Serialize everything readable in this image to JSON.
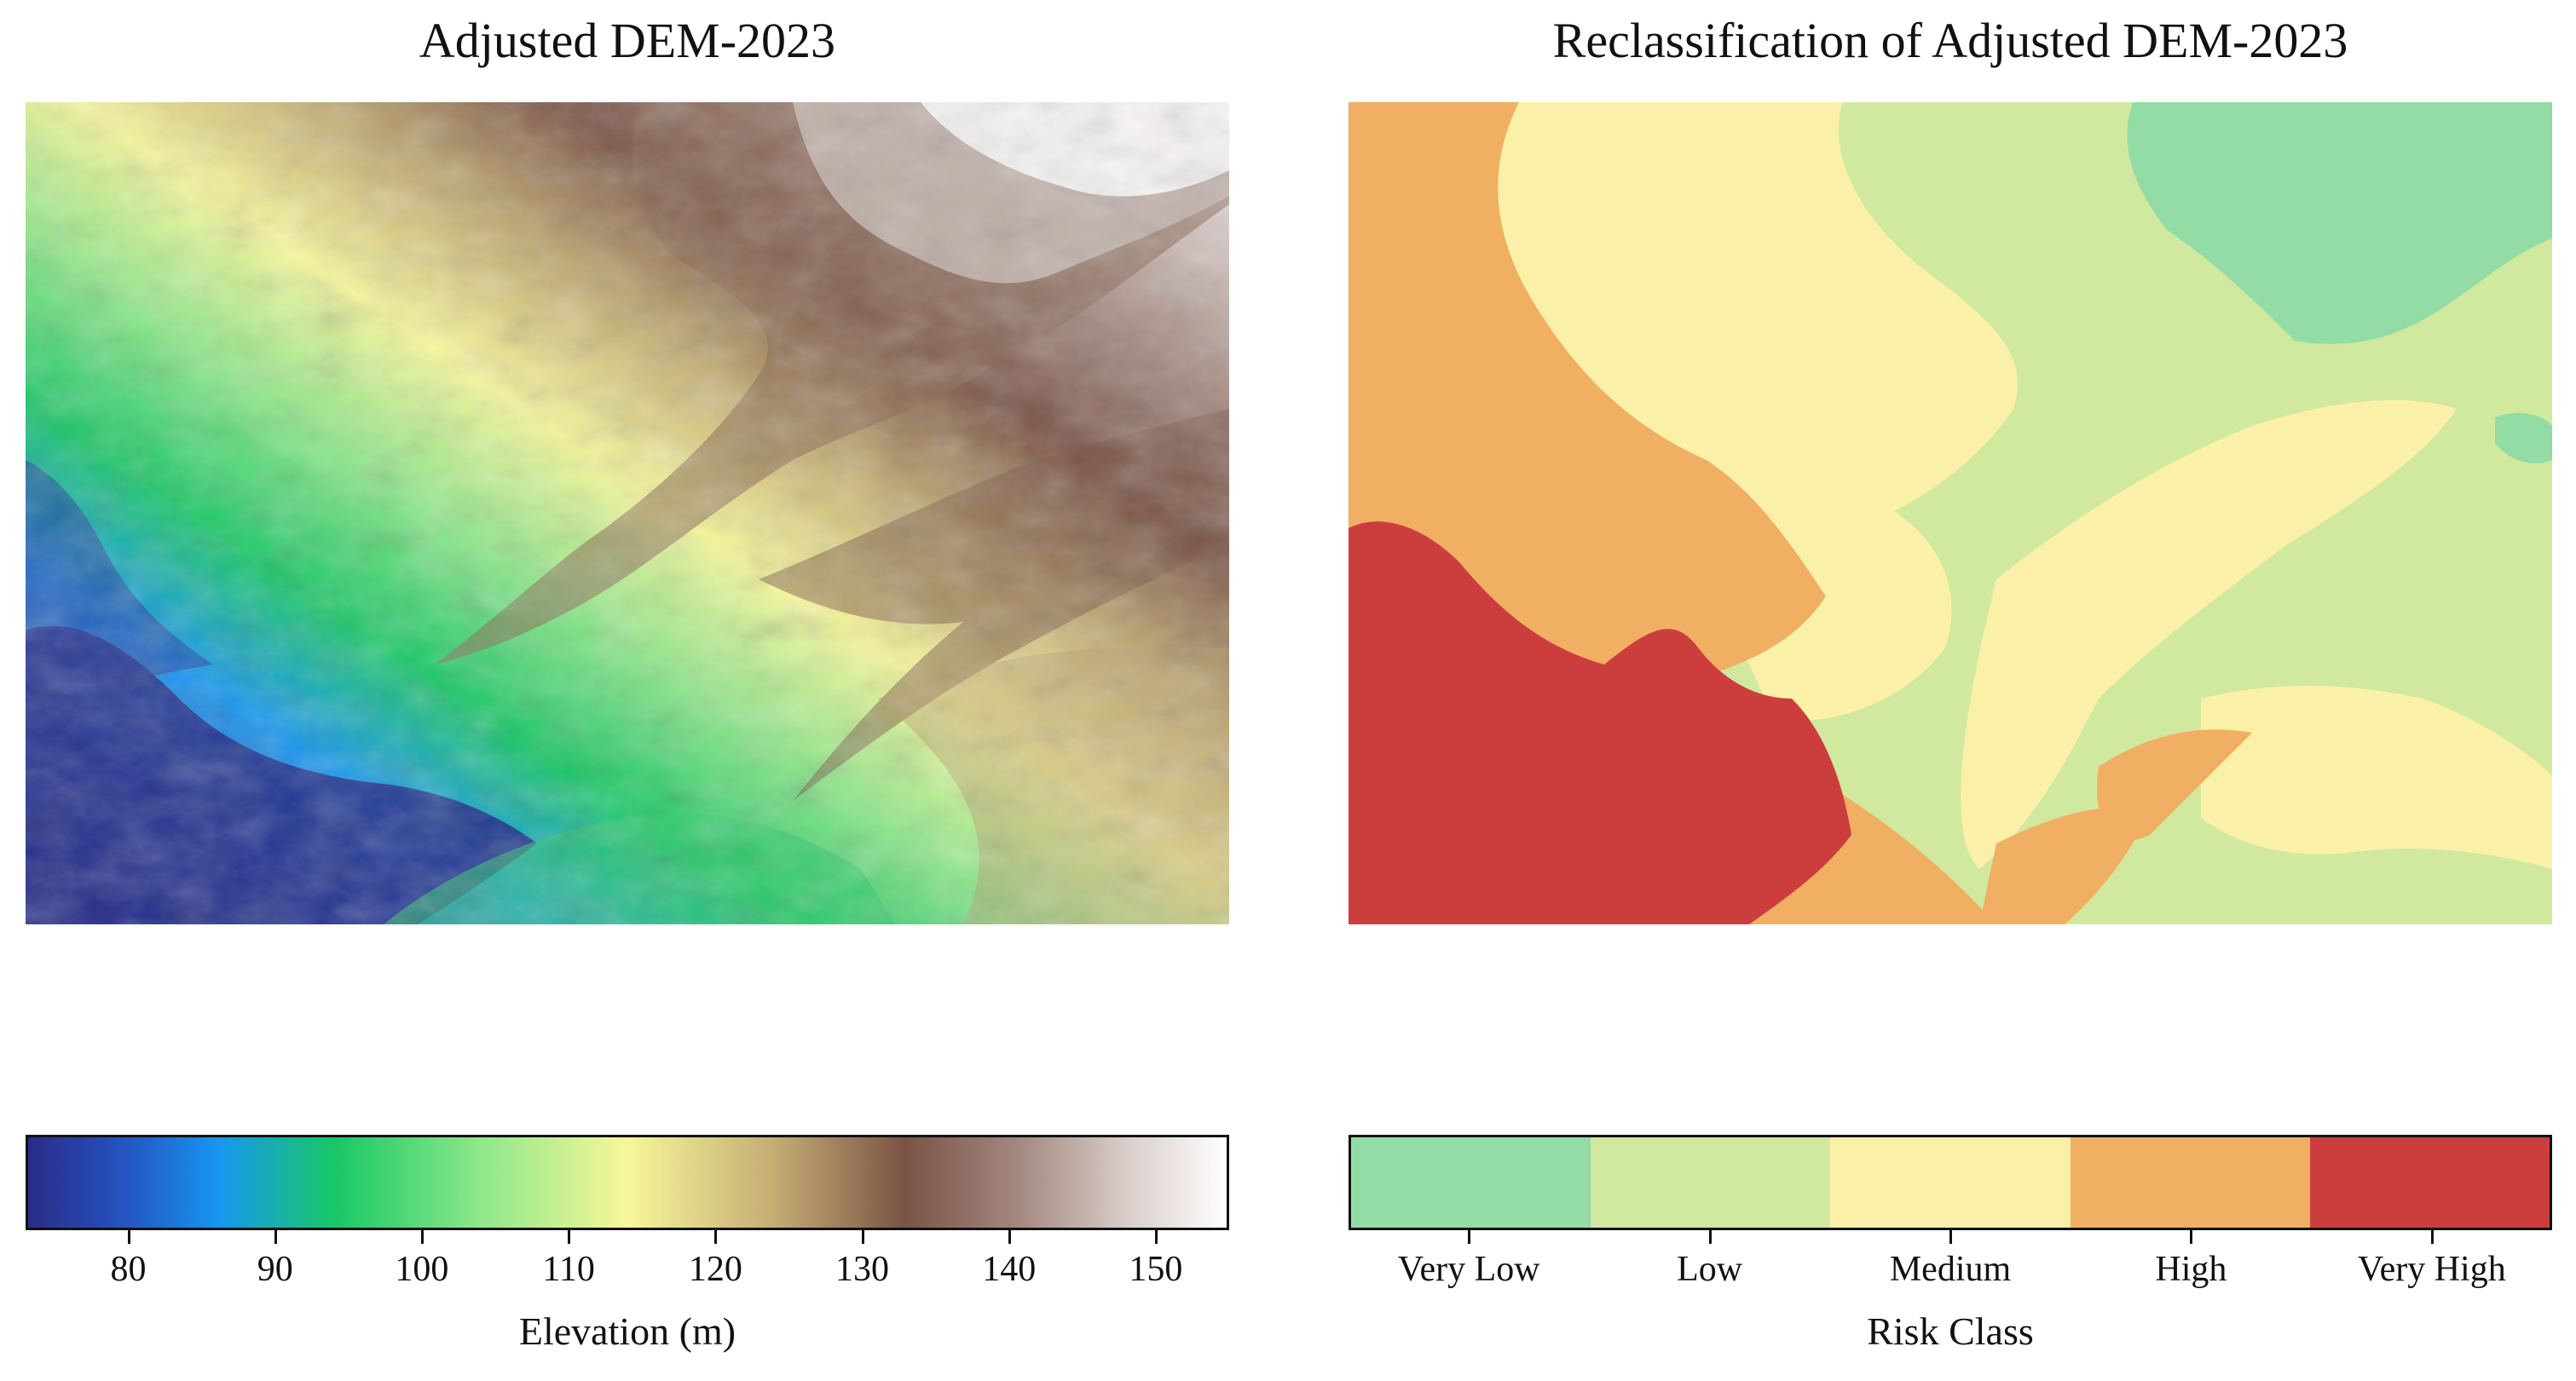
{
  "left_panel": {
    "title": "Adjusted DEM-2023",
    "legend": {
      "title": "Elevation (m)",
      "min": 73,
      "max": 155,
      "ticks": [
        80,
        90,
        100,
        110,
        120,
        130,
        140,
        150
      ],
      "tick_labels": [
        "80",
        "90",
        "100",
        "110",
        "120",
        "130",
        "140",
        "150"
      ],
      "colormap": [
        {
          "value": 73,
          "color": "#2a2b87"
        },
        {
          "value": 80,
          "color": "#2457c4"
        },
        {
          "value": 86,
          "color": "#1796f0"
        },
        {
          "value": 94,
          "color": "#18c865"
        },
        {
          "value": 104,
          "color": "#8fe88a"
        },
        {
          "value": 114,
          "color": "#f7f79a"
        },
        {
          "value": 124,
          "color": "#c4ad74"
        },
        {
          "value": 133,
          "color": "#7a5446"
        },
        {
          "value": 141,
          "color": "#a58a82"
        },
        {
          "value": 148,
          "color": "#d8ccc8"
        },
        {
          "value": 155,
          "color": "#ffffff"
        }
      ]
    }
  },
  "right_panel": {
    "title": "Reclassification of Adjusted DEM-2023",
    "legend": {
      "title": "Risk Class",
      "classes": [
        {
          "label": "Very Low",
          "color": "#93dca6"
        },
        {
          "label": "Low",
          "color": "#d1e89f"
        },
        {
          "label": "Medium",
          "color": "#fbf0a8"
        },
        {
          "label": "High",
          "color": "#f0af62"
        },
        {
          "label": "Very High",
          "color": "#cc3e3e"
        }
      ]
    }
  }
}
